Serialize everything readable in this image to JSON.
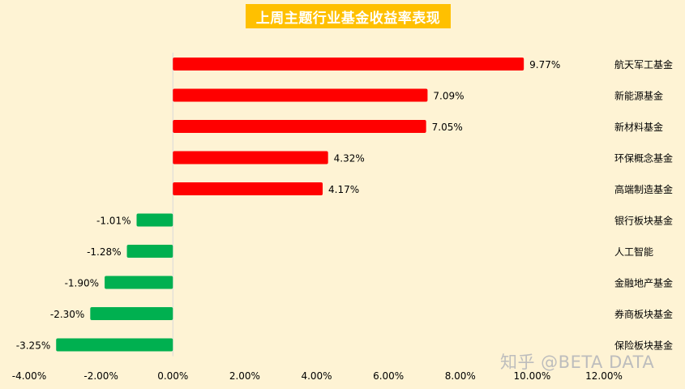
{
  "chart_data": {
    "type": "bar",
    "orientation": "horizontal",
    "title": "上周主题行业基金收益率表现",
    "categories": [
      "航天军工基金",
      "新能源基金",
      "新材料基金",
      "环保概念基金",
      "高端制造基金",
      "银行板块基金",
      "人工智能",
      "金融地产基金",
      "券商板块基金",
      "保险板块基金"
    ],
    "values": [
      9.77,
      7.09,
      7.05,
      4.32,
      4.17,
      -1.01,
      -1.28,
      -1.9,
      -2.3,
      -3.25
    ],
    "value_labels": [
      "9.77%",
      "7.09%",
      "7.05%",
      "4.32%",
      "4.17%",
      "-1.01%",
      "-1.28%",
      "-1.90%",
      "-2.30%",
      "-3.25%"
    ],
    "xlim": [
      -4,
      12
    ],
    "xticks": [
      -4,
      -2,
      0,
      2,
      4,
      6,
      8,
      10,
      12
    ],
    "xtick_labels": [
      "-4.00%",
      "-2.00%",
      "0.00%",
      "2.00%",
      "4.00%",
      "6.00%",
      "8.00%",
      "10.00%",
      "12.00%"
    ],
    "grid": false,
    "colors": {
      "positive": "#ff0000",
      "negative": "#00b050",
      "background": "#fef3d4",
      "title_bg": "#ffc000"
    }
  },
  "watermark": "知乎 @BETA DATA"
}
